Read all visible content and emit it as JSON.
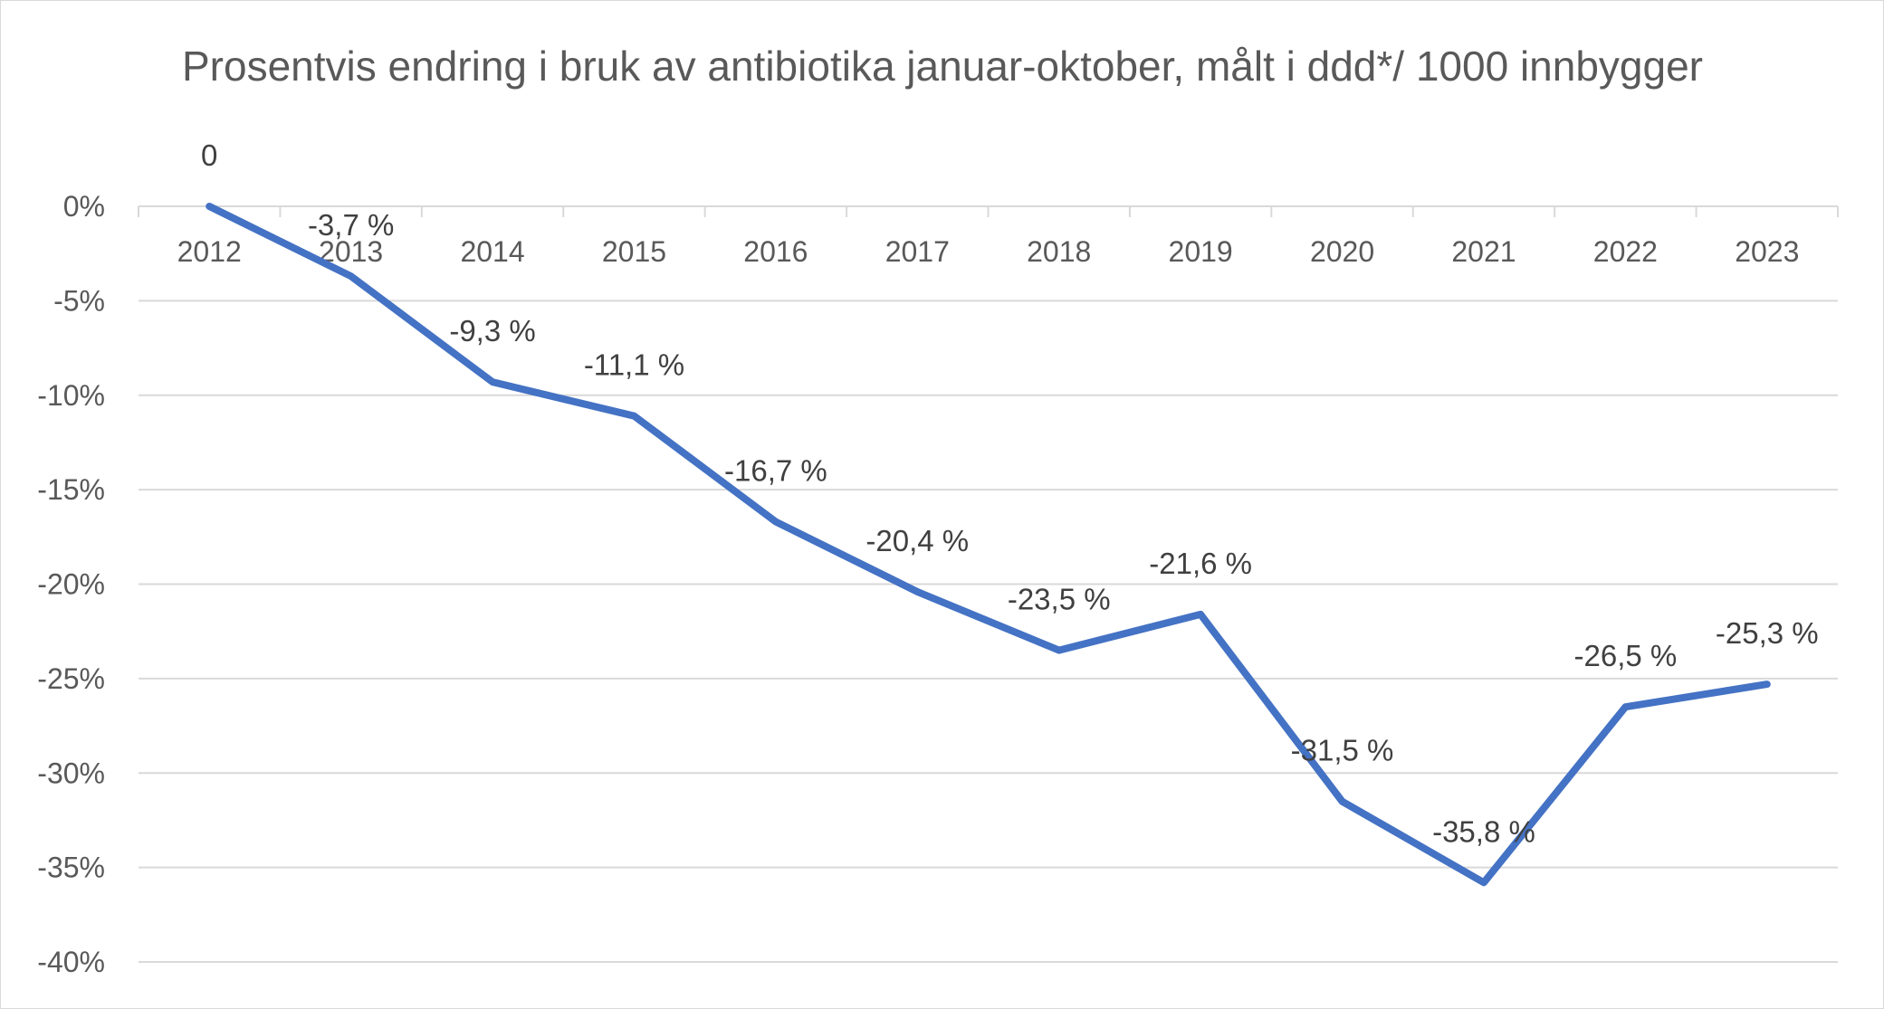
{
  "chart_data": {
    "type": "line",
    "title": "Prosentvis endring i bruk av antibiotika januar-oktober, målt i ddd*/ 1000 innbygger",
    "xlabel": "",
    "ylabel": "",
    "categories": [
      "2012",
      "2013",
      "2014",
      "2015",
      "2016",
      "2017",
      "2018",
      "2019",
      "2020",
      "2021",
      "2022",
      "2023"
    ],
    "series": [
      {
        "values": [
          0,
          -3.7,
          -9.3,
          -11.1,
          -16.7,
          -20.4,
          -23.5,
          -21.6,
          -31.5,
          -35.8,
          -26.5,
          -25.3
        ],
        "data_labels": [
          "0",
          "-3,7 %",
          "-9,3 %",
          "-11,1 %",
          "-16,7 %",
          "-20,4 %",
          "-23,5 %",
          "-21,6 %",
          "-31,5 %",
          "-35,8 %",
          "-26,5 %",
          "-25,3 %"
        ]
      }
    ],
    "y_ticks": [
      0,
      -5,
      -10,
      -15,
      -20,
      -25,
      -30,
      -35,
      -40
    ],
    "y_tick_labels": [
      "0%",
      "-5%",
      "-10%",
      "-15%",
      "-20%",
      "-25%",
      "-30%",
      "-35%",
      "-40%"
    ],
    "ylim": [
      -40,
      0
    ],
    "grid": true,
    "legend": "none",
    "x_axis_position": "top",
    "colors": {
      "line": "#4472c4",
      "grid": "#d9d9d9",
      "text": "#595959",
      "label": "#404040"
    }
  }
}
